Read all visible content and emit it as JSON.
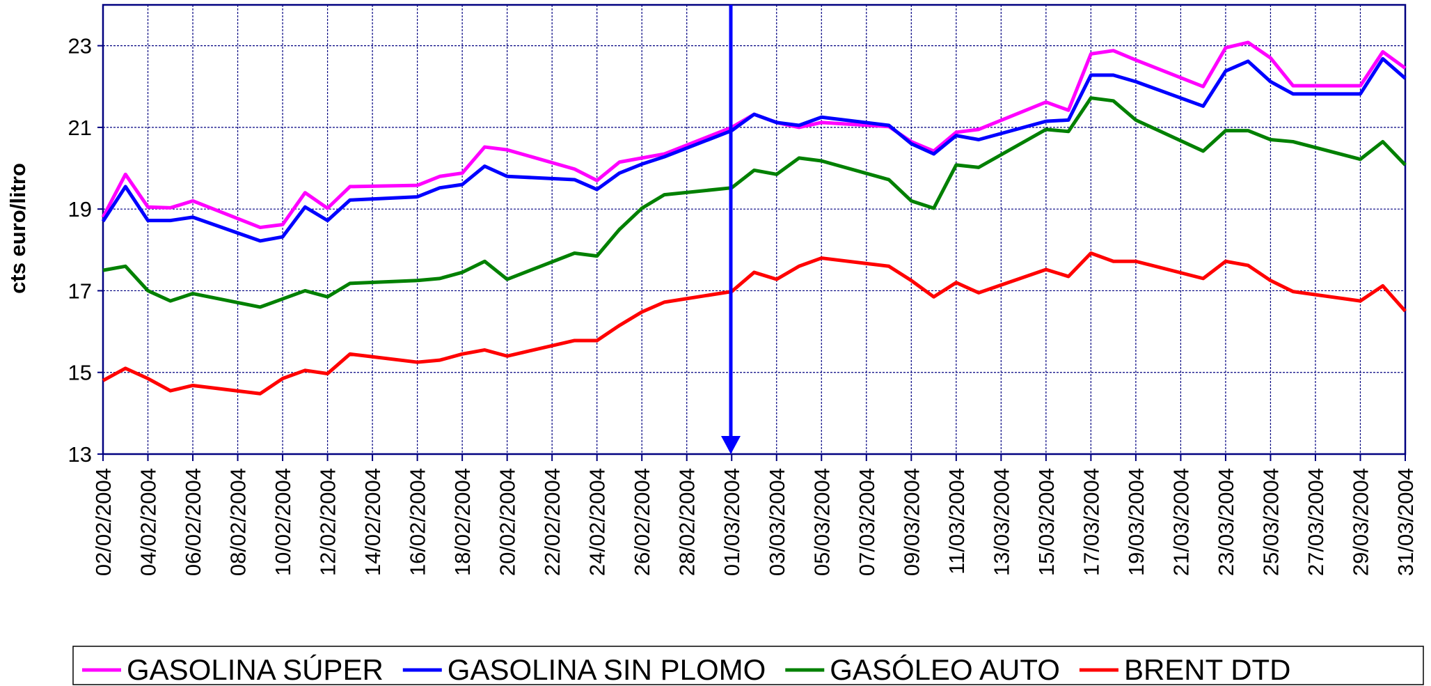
{
  "chart_data": {
    "type": "line",
    "y_label": "cts euro/litro",
    "x": [
      "02/02/2004",
      "03/02/2004",
      "04/02/2004",
      "05/02/2004",
      "06/02/2004",
      "09/02/2004",
      "10/02/2004",
      "11/02/2004",
      "12/02/2004",
      "13/02/2004",
      "16/02/2004",
      "17/02/2004",
      "18/02/2004",
      "19/02/2004",
      "20/02/2004",
      "23/02/2004",
      "24/02/2004",
      "25/02/2004",
      "26/02/2004",
      "27/02/2004",
      "01/03/2004",
      "02/03/2004",
      "03/03/2004",
      "04/03/2004",
      "05/03/2004",
      "08/03/2004",
      "09/03/2004",
      "10/03/2004",
      "11/03/2004",
      "12/03/2004",
      "15/03/2004",
      "16/03/2004",
      "17/03/2004",
      "18/03/2004",
      "19/03/2004",
      "22/03/2004",
      "23/03/2004",
      "24/03/2004",
      "25/03/2004",
      "26/03/2004",
      "29/03/2004",
      "30/03/2004",
      "31/03/2004"
    ],
    "series": [
      {
        "name": "GASOLINA SÚPER",
        "color": "#ff00ff",
        "values": [
          18.8,
          19.85,
          19.05,
          19.03,
          19.2,
          18.55,
          18.62,
          19.4,
          19.02,
          19.55,
          19.58,
          19.8,
          19.88,
          20.52,
          20.45,
          19.98,
          19.7,
          20.15,
          20.25,
          20.35,
          21.0,
          21.32,
          21.12,
          21.0,
          21.12,
          21.02,
          20.65,
          20.42,
          20.88,
          20.95,
          21.62,
          21.42,
          22.8,
          22.88,
          22.65,
          22.0,
          22.95,
          23.08,
          22.7,
          22.02,
          22.02,
          22.85,
          22.45
        ]
      },
      {
        "name": "GASOLINA SIN PLOMO",
        "color": "#0000ff",
        "values": [
          18.7,
          19.55,
          18.72,
          18.72,
          18.8,
          18.22,
          18.32,
          19.05,
          18.72,
          19.22,
          19.3,
          19.52,
          19.6,
          20.05,
          19.8,
          19.72,
          19.48,
          19.88,
          20.1,
          20.28,
          20.92,
          21.32,
          21.12,
          21.05,
          21.25,
          21.05,
          20.6,
          20.35,
          20.8,
          20.7,
          21.15,
          21.18,
          22.28,
          22.28,
          22.12,
          21.52,
          22.38,
          22.62,
          22.12,
          21.82,
          21.82,
          22.68,
          22.2
        ]
      },
      {
        "name": "GASÓLEO AUTO",
        "color": "#008000",
        "values": [
          17.5,
          17.6,
          17.0,
          16.75,
          16.93,
          16.6,
          16.8,
          17.0,
          16.85,
          17.18,
          17.25,
          17.3,
          17.45,
          17.72,
          17.28,
          17.92,
          17.85,
          18.5,
          19.02,
          19.35,
          19.52,
          19.95,
          19.85,
          20.25,
          20.18,
          19.72,
          19.2,
          19.02,
          20.08,
          20.02,
          20.95,
          20.9,
          21.72,
          21.65,
          21.18,
          20.42,
          20.92,
          20.92,
          20.7,
          20.65,
          20.22,
          20.65,
          20.08
        ]
      },
      {
        "name": "BRENT DTD",
        "color": "#ff0000",
        "values": [
          14.8,
          15.1,
          14.85,
          14.55,
          14.68,
          14.48,
          14.85,
          15.05,
          14.97,
          15.45,
          15.25,
          15.3,
          15.45,
          15.55,
          15.4,
          15.78,
          15.78,
          16.15,
          16.48,
          16.72,
          16.98,
          17.45,
          17.28,
          17.6,
          17.8,
          17.6,
          17.25,
          16.85,
          17.2,
          16.95,
          17.52,
          17.35,
          17.92,
          17.72,
          17.72,
          17.3,
          17.72,
          17.62,
          17.25,
          16.98,
          16.75,
          17.12,
          16.5
        ]
      }
    ],
    "xticks": [
      "02/02/2004",
      "04/02/2004",
      "06/02/2004",
      "08/02/2004",
      "10/02/2004",
      "12/02/2004",
      "14/02/2004",
      "16/02/2004",
      "18/02/2004",
      "20/02/2004",
      "22/02/2004",
      "24/02/2004",
      "26/02/2004",
      "28/02/2004",
      "01/03/2004",
      "03/03/2004",
      "05/03/2004",
      "07/03/2004",
      "09/03/2004",
      "11/03/2004",
      "13/03/2004",
      "15/03/2004",
      "17/03/2004",
      "19/03/2004",
      "21/03/2004",
      "23/03/2004",
      "25/03/2004",
      "27/03/2004",
      "29/03/2004",
      "31/03/2004"
    ],
    "ylim": [
      13,
      24
    ],
    "yticks": [
      13,
      15,
      17,
      19,
      21,
      23
    ],
    "grid": true
  }
}
